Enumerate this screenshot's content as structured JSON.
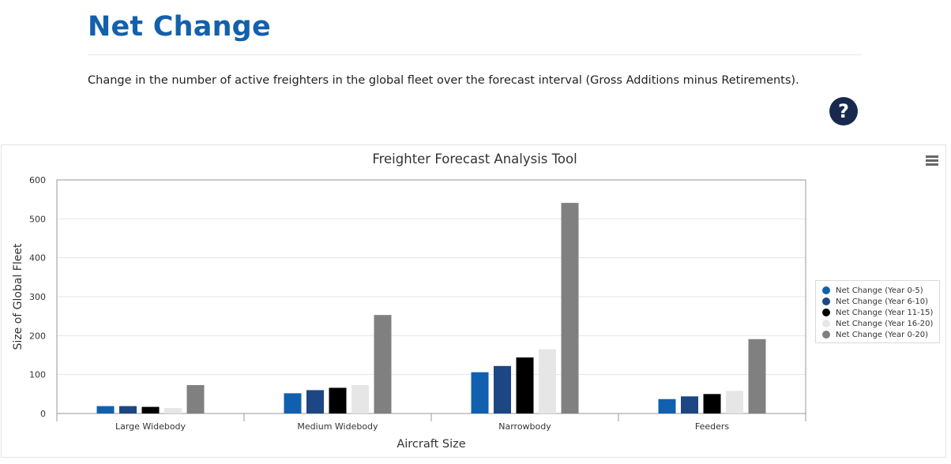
{
  "header": {
    "title": "Net Change",
    "description": "Change in the number of active freighters in the global fleet over the forecast interval (Gross Additions minus Retirements).",
    "help_symbol": "?"
  },
  "chart_data": {
    "type": "bar",
    "title": "Freighter Forecast Analysis Tool",
    "xlabel": "Aircraft Size",
    "ylabel": "Size of Global Fleet",
    "categories": [
      "Large Widebody",
      "Medium Widebody",
      "Narrowbody",
      "Feeders"
    ],
    "ylim": [
      0,
      600
    ],
    "yticks": [
      0,
      100,
      200,
      300,
      400,
      500,
      600
    ],
    "grid": true,
    "legend_position": "right",
    "series": [
      {
        "name": "Net Change (Year 0-5)",
        "color": "#1160b0",
        "values": [
          19,
          52,
          106,
          37
        ]
      },
      {
        "name": "Net Change (Year 6-10)",
        "color": "#1d4784",
        "values": [
          19,
          60,
          122,
          44
        ]
      },
      {
        "name": "Net Change (Year 11-15)",
        "color": "#000000",
        "values": [
          17,
          66,
          144,
          50
        ]
      },
      {
        "name": "Net Change (Year 16-20)",
        "color": "#e6e6e6",
        "values": [
          14,
          73,
          165,
          58
        ]
      },
      {
        "name": "Net Change (Year 0-20)",
        "color": "#808080",
        "values": [
          73,
          253,
          541,
          191
        ]
      }
    ]
  }
}
